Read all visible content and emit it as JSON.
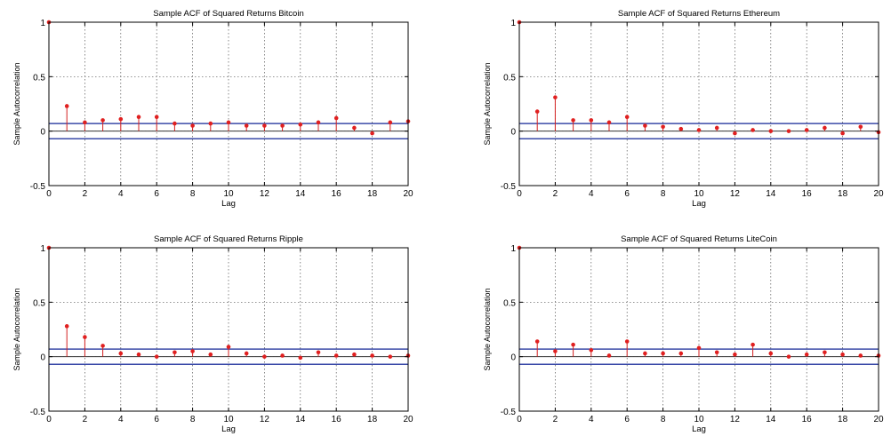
{
  "chart_data": [
    {
      "type": "stem",
      "title": "Sample ACF of Squared Returns Bitcoin",
      "xlabel": "Lag",
      "ylabel": "Sample Autocorrelation",
      "xlim": [
        0,
        20
      ],
      "ylim": [
        -0.5,
        1
      ],
      "xticks": [
        "0",
        "2",
        "4",
        "6",
        "8",
        "10",
        "12",
        "14",
        "16",
        "18",
        "20"
      ],
      "yticks": [
        "-0.5",
        "0",
        "0.5",
        "1"
      ],
      "grid": true,
      "confidence_bounds": [
        0.07,
        -0.07
      ],
      "lags": [
        0,
        1,
        2,
        3,
        4,
        5,
        6,
        7,
        8,
        9,
        10,
        11,
        12,
        13,
        14,
        15,
        16,
        17,
        18,
        19,
        20
      ],
      "values": [
        1,
        0.23,
        0.08,
        0.1,
        0.11,
        0.13,
        0.13,
        0.07,
        0.05,
        0.07,
        0.08,
        0.05,
        0.05,
        0.05,
        0.06,
        0.08,
        0.12,
        0.03,
        -0.02,
        0.08,
        0.09
      ]
    },
    {
      "type": "stem",
      "title": "Sample ACF of Squared Returns Ethereum",
      "xlabel": "Lag",
      "ylabel": "Sample Autocorrelation",
      "xlim": [
        0,
        20
      ],
      "ylim": [
        -0.5,
        1
      ],
      "xticks": [
        "0",
        "2",
        "4",
        "6",
        "8",
        "10",
        "12",
        "14",
        "16",
        "18",
        "20"
      ],
      "yticks": [
        "-0.5",
        "0",
        "0.5",
        "1"
      ],
      "grid": true,
      "confidence_bounds": [
        0.07,
        -0.07
      ],
      "lags": [
        0,
        1,
        2,
        3,
        4,
        5,
        6,
        7,
        8,
        9,
        10,
        11,
        12,
        13,
        14,
        15,
        16,
        17,
        18,
        19,
        20
      ],
      "values": [
        1,
        0.18,
        0.31,
        0.1,
        0.1,
        0.08,
        0.13,
        0.05,
        0.04,
        0.02,
        0.01,
        0.03,
        -0.02,
        0.01,
        0.0,
        0.0,
        0.01,
        0.03,
        -0.02,
        0.04,
        -0.01
      ]
    },
    {
      "type": "stem",
      "title": "Sample ACF of Squared Returns Ripple",
      "xlabel": "Lag",
      "ylabel": "Sample Autocorrelation",
      "xlim": [
        0,
        20
      ],
      "ylim": [
        -0.5,
        1
      ],
      "xticks": [
        "0",
        "2",
        "4",
        "6",
        "8",
        "10",
        "12",
        "14",
        "16",
        "18",
        "20"
      ],
      "yticks": [
        "-0.5",
        "0",
        "0.5",
        "1"
      ],
      "grid": true,
      "confidence_bounds": [
        0.07,
        -0.07
      ],
      "lags": [
        0,
        1,
        2,
        3,
        4,
        5,
        6,
        7,
        8,
        9,
        10,
        11,
        12,
        13,
        14,
        15,
        16,
        17,
        18,
        19,
        20
      ],
      "values": [
        1,
        0.28,
        0.18,
        0.1,
        0.03,
        0.02,
        0.0,
        0.04,
        0.05,
        0.02,
        0.09,
        0.03,
        0.0,
        0.01,
        -0.01,
        0.04,
        0.01,
        0.02,
        0.01,
        0.0,
        0.01
      ]
    },
    {
      "type": "stem",
      "title": "Sample ACF of Squared Returns LiteCoin",
      "xlabel": "Lag",
      "ylabel": "Sample Autocorrelation",
      "xlim": [
        0,
        20
      ],
      "ylim": [
        -0.5,
        1
      ],
      "xticks": [
        "0",
        "2",
        "4",
        "6",
        "8",
        "10",
        "12",
        "14",
        "16",
        "18",
        "20"
      ],
      "yticks": [
        "-0.5",
        "0",
        "0.5",
        "1"
      ],
      "grid": true,
      "confidence_bounds": [
        0.07,
        -0.07
      ],
      "lags": [
        0,
        1,
        2,
        3,
        4,
        5,
        6,
        7,
        8,
        9,
        10,
        11,
        12,
        13,
        14,
        15,
        16,
        17,
        18,
        19,
        20
      ],
      "values": [
        1,
        0.14,
        0.05,
        0.11,
        0.06,
        0.01,
        0.14,
        0.03,
        0.03,
        0.03,
        0.08,
        0.04,
        0.02,
        0.11,
        0.03,
        0.0,
        0.02,
        0.04,
        0.02,
        0.01,
        0.01
      ]
    }
  ],
  "colors": {
    "stem": "#d42020",
    "marker": "#e02020",
    "bound": "#3a4aa8",
    "zero_line": "#333333",
    "grid": "#555555",
    "axis": "#000000"
  }
}
